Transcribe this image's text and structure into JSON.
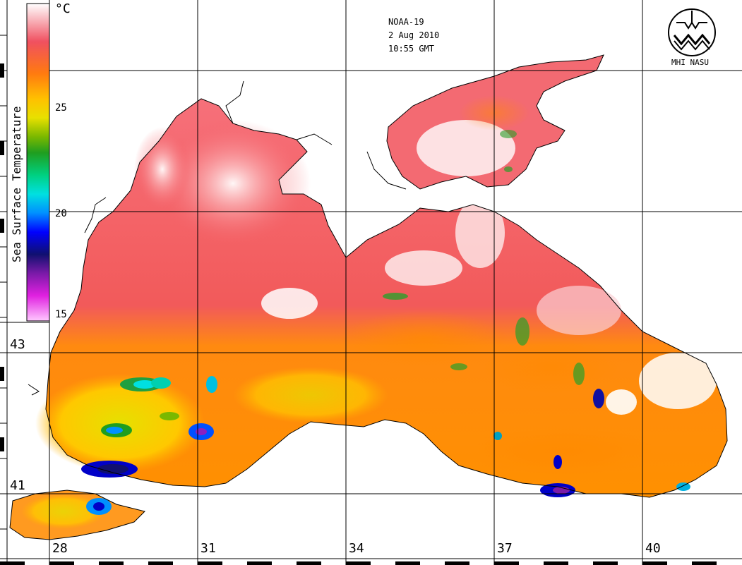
{
  "header": {
    "satellite": "NOAA-19",
    "date": "2 Aug 2010",
    "time": "10:55 GMT"
  },
  "logo": {
    "text": "MHI NASU",
    "icon": "mhi-logo-icon"
  },
  "legend": {
    "title": "Sea Surface Temperature",
    "unit": "°C",
    "ticks": [
      "25",
      "20",
      "15"
    ],
    "range": [
      15,
      29
    ],
    "colors": {
      "max": "#ffffff",
      "high": "#f25a5a",
      "warm": "#ff8c00",
      "mid": "#ffd000",
      "green": "#1f9e1f",
      "cyan": "#00e0e0",
      "blue": "#0000ff",
      "navy": "#101070",
      "purple": "#7a1aa8",
      "min": "#ff8cff"
    }
  },
  "latitude_labels": [
    "43",
    "41"
  ],
  "longitude_labels": [
    "28",
    "31",
    "34",
    "37",
    "40"
  ]
}
